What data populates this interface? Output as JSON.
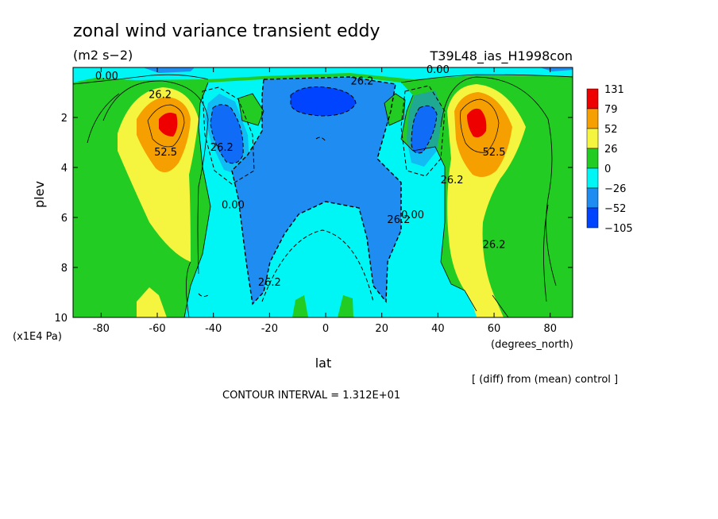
{
  "header": {
    "title": "zonal wind variance transient eddy",
    "units": "(m2 s−2)",
    "run": "T39L48_ias_H1998con"
  },
  "footer": {
    "axis_unit": "(x1E4 Pa)",
    "xunit": "(degrees_north)",
    "diff_note": "[ (diff) from (mean) control ]",
    "contour_interval": "CONTOUR INTERVAL = 1.312E+01"
  },
  "chart_data": {
    "type": "heatmap",
    "title": "zonal wind variance transient eddy",
    "xlabel": "lat",
    "ylabel": "plev",
    "xlim": [
      -90,
      88
    ],
    "ylim": [
      0,
      10
    ],
    "y_inverted": true,
    "x_ticks": [
      -80,
      -60,
      -40,
      -20,
      0,
      20,
      40,
      60,
      80
    ],
    "y_ticks": [
      2,
      4,
      6,
      8,
      10
    ],
    "colorbar": {
      "labels": [
        "131",
        "79",
        "52",
        "26",
        "0",
        "−26",
        "−52",
        "−105"
      ],
      "colors": [
        "#ee0000",
        "#f5a000",
        "#f5f540",
        "#22cc22",
        "#00f5f5",
        "#1e8cf0",
        "#0044ff"
      ]
    },
    "contour_labels": [
      {
        "text": "0.00",
        "lat": -78,
        "plev": 0.35
      },
      {
        "text": "26.2",
        "lat": -59,
        "plev": 1.1
      },
      {
        "text": "52.5",
        "lat": -57,
        "plev": 3.4
      },
      {
        "text": "26.2",
        "lat": -37,
        "plev": 3.2
      },
      {
        "text": "0.00",
        "lat": -33,
        "plev": 5.5
      },
      {
        "text": "26.2",
        "lat": -20,
        "plev": 8.6
      },
      {
        "text": "26.2",
        "lat": 13,
        "plev": 0.55
      },
      {
        "text": "0.00",
        "lat": 40,
        "plev": 0.1
      },
      {
        "text": "26.2",
        "lat": 26,
        "plev": 6.1
      },
      {
        "text": "0.00",
        "lat": 31,
        "plev": 5.9
      },
      {
        "text": "26.2",
        "lat": 45,
        "plev": 4.5
      },
      {
        "text": "52.5",
        "lat": 60,
        "plev": 3.4
      },
      {
        "text": "26.2",
        "lat": 60,
        "plev": 7.1
      }
    ]
  }
}
